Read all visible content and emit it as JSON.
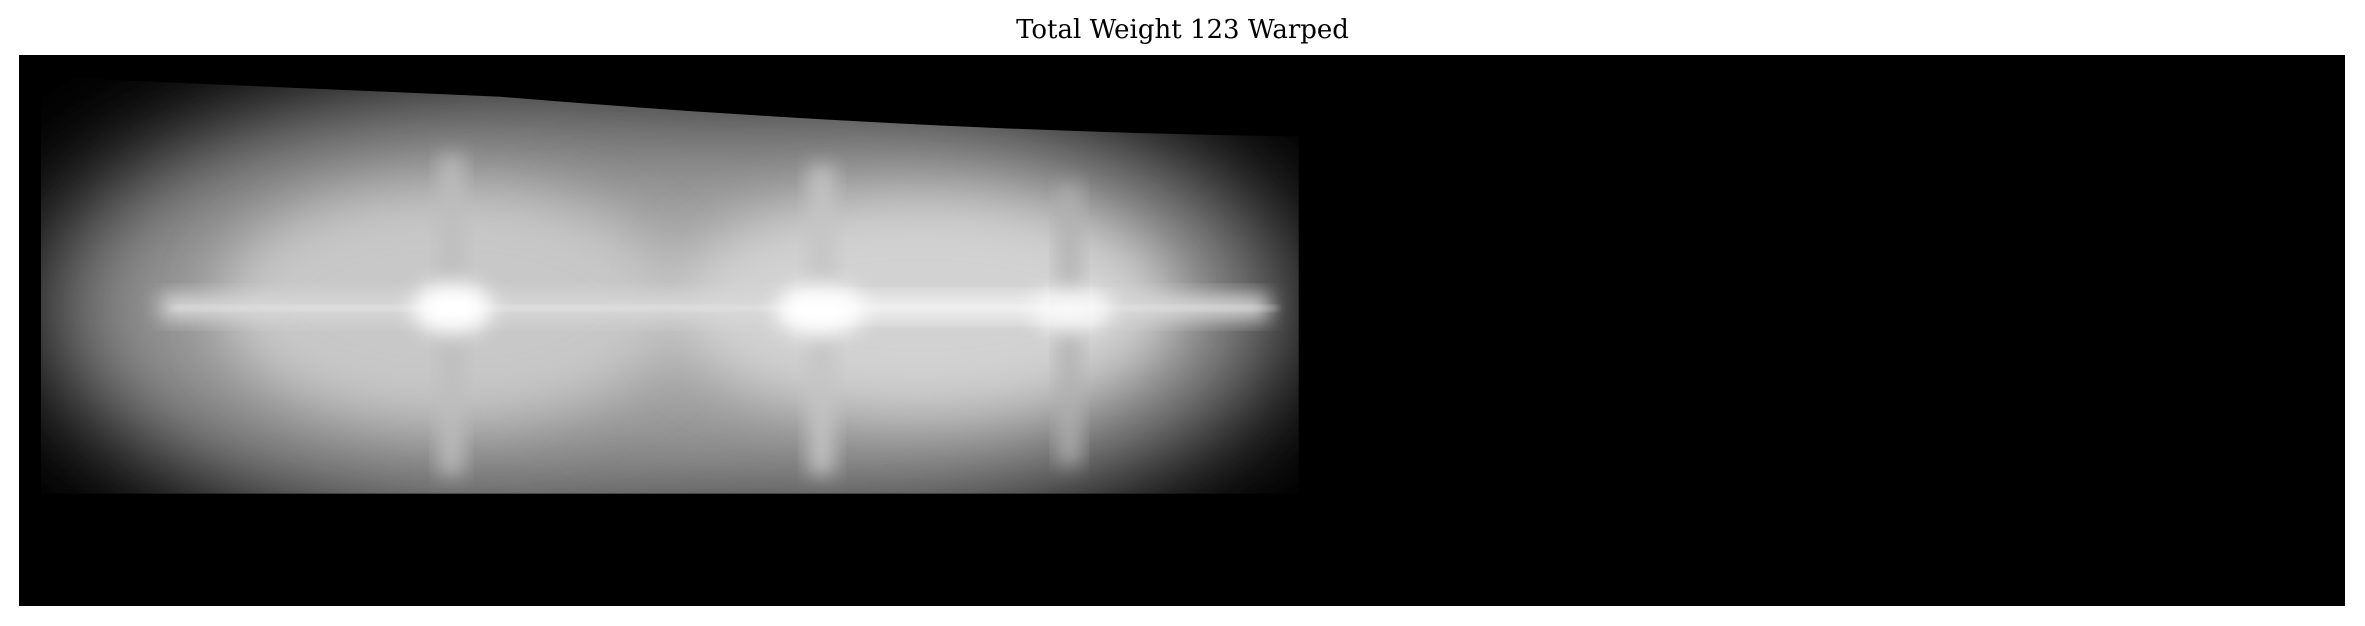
{
  "figure": {
    "title": "Total Weight 123 Warped"
  },
  "image": {
    "description_colormap": "grayscale",
    "background_color": "#000000",
    "highlight_color": "#ffffff"
  }
}
